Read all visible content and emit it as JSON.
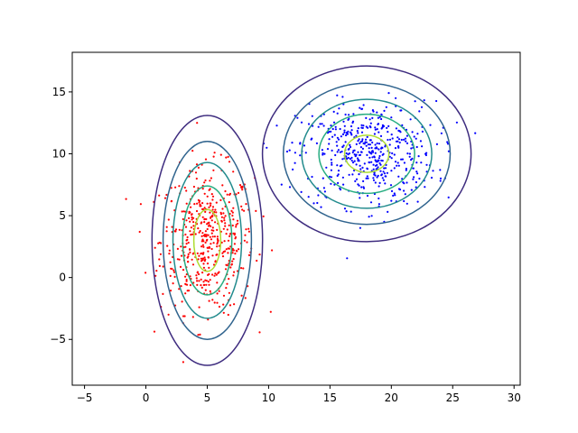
{
  "chart_data": {
    "type": "scatter",
    "title": "",
    "xlabel": "",
    "ylabel": "",
    "xlim": [
      -6,
      30.5
    ],
    "ylim": [
      -8.7,
      18.2
    ],
    "xticks": [
      -5,
      0,
      5,
      10,
      15,
      20,
      25,
      30
    ],
    "yticks": [
      -5,
      0,
      5,
      10,
      15
    ],
    "xtick_labels": [
      "−5",
      "0",
      "5",
      "10",
      "15",
      "20",
      "25",
      "30"
    ],
    "ytick_labels": [
      "−5",
      "0",
      "5",
      "10",
      "15"
    ],
    "grid": false,
    "legend": "none",
    "series": [
      {
        "color": "#ff0000",
        "center": [
          5,
          3
        ],
        "std": [
          1.9,
          2.9
        ],
        "count": 500
      },
      {
        "color": "#0000ff",
        "center": [
          18,
          10
        ],
        "std": [
          2.8,
          2.1
        ],
        "count": 500
      }
    ],
    "contours": [
      {
        "center": [
          5,
          3
        ],
        "rx": [
          4.5,
          3.6,
          2.8,
          2.0,
          1.1
        ],
        "ry": [
          10.1,
          8.0,
          6.3,
          4.4,
          2.5
        ]
      },
      {
        "center": [
          18,
          10
        ],
        "rx": [
          8.5,
          6.8,
          5.3,
          3.9,
          1.8
        ],
        "ry": [
          7.1,
          5.7,
          4.4,
          3.2,
          1.5
        ]
      }
    ],
    "contour_colors": [
      "#3e2c7f",
      "#30648e",
      "#228b8d",
      "#27ad81",
      "#addc30"
    ]
  }
}
